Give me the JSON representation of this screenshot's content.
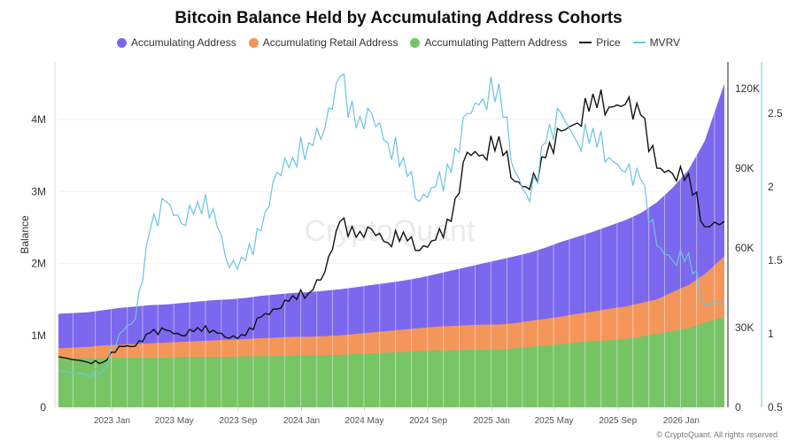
{
  "chart_data": {
    "type": "area",
    "title": "Bitcoin Balance Held by Accumulating Address Cohorts",
    "ylabel": "Balance",
    "ylim": [
      0,
      4.8
    ],
    "y_ticks": [
      "0",
      "1M",
      "2M",
      "3M",
      "4M"
    ],
    "price_ticks": [
      "0",
      "30K",
      "60K",
      "90K",
      "120K"
    ],
    "price_lim": [
      0,
      130
    ],
    "mvrv_ticks": [
      "0.5",
      "1",
      "1.5",
      "2",
      "2.5"
    ],
    "mvrv_lim": [
      0.5,
      2.85
    ],
    "x_ticks": [
      "2023 Jan",
      "2023 May",
      "2023 Sep",
      "2024 Jan",
      "2024 May",
      "2024 Sep",
      "2025 Jan",
      "2025 May",
      "2025 Sep",
      "2026 Jan"
    ],
    "x": [
      "2022-10",
      "2022-11",
      "2022-12",
      "2023-01",
      "2023-02",
      "2023-03",
      "2023-04",
      "2023-05",
      "2023-06",
      "2023-07",
      "2023-08",
      "2023-09",
      "2023-10",
      "2023-11",
      "2023-12",
      "2024-01",
      "2024-02",
      "2024-03",
      "2024-04",
      "2024-05",
      "2024-06",
      "2024-07",
      "2024-08",
      "2024-09",
      "2024-10",
      "2024-11",
      "2024-12",
      "2025-01",
      "2025-02",
      "2025-03",
      "2025-04",
      "2025-05",
      "2025-06",
      "2025-07",
      "2025-08",
      "2025-09",
      "2025-10",
      "2025-11",
      "2025-12",
      "2026-01",
      "2026-02",
      "2026-03"
    ],
    "grid": true,
    "legend_position": "top",
    "series": [
      {
        "name": "Accumulating Address",
        "kind": "area",
        "axis": "left",
        "unit": "M",
        "color": "#7b68ee",
        "values": [
          1.3,
          1.32,
          1.35,
          1.38,
          1.4,
          1.42,
          1.43,
          1.45,
          1.47,
          1.49,
          1.5,
          1.52,
          1.55,
          1.57,
          1.59,
          1.6,
          1.62,
          1.64,
          1.67,
          1.7,
          1.73,
          1.76,
          1.8,
          1.85,
          1.9,
          1.95,
          2.0,
          2.05,
          2.1,
          2.15,
          2.22,
          2.3,
          2.37,
          2.44,
          2.52,
          2.6,
          2.7,
          2.85,
          3.05,
          3.3,
          3.7,
          4.5
        ]
      },
      {
        "name": "Accumulating Retail Address",
        "kind": "area",
        "axis": "left",
        "unit": "M",
        "color": "#f4965a",
        "values": [
          0.82,
          0.84,
          0.86,
          0.87,
          0.88,
          0.89,
          0.9,
          0.91,
          0.92,
          0.93,
          0.94,
          0.95,
          0.96,
          0.97,
          0.98,
          0.98,
          0.99,
          1.0,
          1.02,
          1.04,
          1.06,
          1.08,
          1.1,
          1.12,
          1.13,
          1.14,
          1.15,
          1.15,
          1.17,
          1.2,
          1.23,
          1.26,
          1.3,
          1.33,
          1.37,
          1.4,
          1.45,
          1.5,
          1.6,
          1.7,
          1.85,
          2.1
        ]
      },
      {
        "name": "Accumulating Pattern Address",
        "kind": "area",
        "axis": "left",
        "unit": "M",
        "color": "#77c465",
        "values": [
          0.68,
          0.68,
          0.68,
          0.69,
          0.69,
          0.69,
          0.69,
          0.7,
          0.7,
          0.7,
          0.7,
          0.71,
          0.71,
          0.71,
          0.72,
          0.72,
          0.72,
          0.73,
          0.74,
          0.75,
          0.76,
          0.77,
          0.78,
          0.79,
          0.79,
          0.8,
          0.8,
          0.8,
          0.82,
          0.84,
          0.86,
          0.88,
          0.9,
          0.92,
          0.93,
          0.95,
          0.98,
          1.02,
          1.06,
          1.1,
          1.18,
          1.25
        ]
      },
      {
        "name": "Price",
        "kind": "line",
        "axis": "price",
        "unit": "K",
        "color": "#111111",
        "values": [
          19,
          17,
          17,
          23,
          23,
          28,
          29,
          27,
          30,
          29,
          26,
          27,
          34,
          37,
          42,
          43,
          51,
          70,
          64,
          67,
          62,
          66,
          59,
          63,
          70,
          96,
          95,
          102,
          85,
          82,
          94,
          104,
          107,
          118,
          113,
          114,
          110,
          90,
          88,
          88,
          68,
          70
        ]
      },
      {
        "name": "MVRV",
        "kind": "line",
        "axis": "mvrv",
        "color": "#6cc4e0",
        "values": [
          0.75,
          0.72,
          0.75,
          1.0,
          1.1,
          1.7,
          1.9,
          1.75,
          1.9,
          1.85,
          1.45,
          1.5,
          1.7,
          2.1,
          2.2,
          2.3,
          2.4,
          2.75,
          2.4,
          2.5,
          2.3,
          2.2,
          1.9,
          2.0,
          2.1,
          2.5,
          2.6,
          2.7,
          2.1,
          1.9,
          2.3,
          2.5,
          2.3,
          2.4,
          2.2,
          2.1,
          2.05,
          1.6,
          1.5,
          1.55,
          1.2,
          1.22
        ]
      }
    ]
  },
  "watermark": "CryptoQuant",
  "copyright": "© CryptoQuant. All rights reserved"
}
